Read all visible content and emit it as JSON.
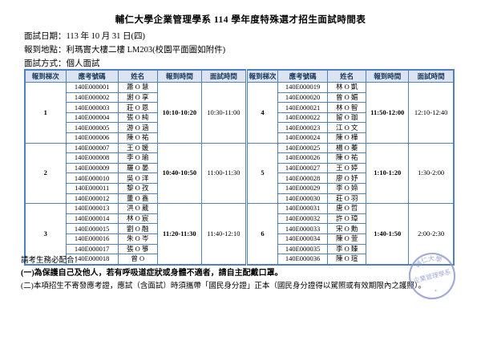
{
  "title": "輔仁大學企業管理學系 114 學年度特殊選才招生面試時間表",
  "info": [
    "面試日期：113 年 10 月 31 日(四)",
    "報到地點：利瑪竇大樓二樓 LM203(校園平面圖如附件)",
    "面試方式：個人面試"
  ],
  "schedule": {
    "headers": [
      "報到梯次",
      "應考號碼",
      "姓名",
      "報到時間",
      "面試時間"
    ],
    "groups": [
      {
        "batch": "1",
        "checkin_time": "10:10-10:20",
        "interview_time": "10:30-11:00",
        "students": [
          {
            "id": "140E000001",
            "name": "蕭 O 慧"
          },
          {
            "id": "140E000002",
            "name": "謝 O 享"
          },
          {
            "id": "140E000003",
            "name": "莊 O 恩"
          },
          {
            "id": "140E000004",
            "name": "張 O 純"
          },
          {
            "id": "140E000005",
            "name": "游 O 涵"
          },
          {
            "id": "140E000006",
            "name": "陳 O 祐"
          }
        ]
      },
      {
        "batch": "2",
        "checkin_time": "10:40-10:50",
        "interview_time": "11:00-11:30",
        "students": [
          {
            "id": "140E000007",
            "name": "王 O 媛"
          },
          {
            "id": "140E000008",
            "name": "李 O 瑜"
          },
          {
            "id": "140E000009",
            "name": "羅 O 晏"
          },
          {
            "id": "140E000010",
            "name": "吳 O 洋"
          },
          {
            "id": "140E000011",
            "name": "黎 O 孜"
          },
          {
            "id": "140E000012",
            "name": "董 O 鑫"
          }
        ]
      },
      {
        "batch": "3",
        "checkin_time": "11:20-11:30",
        "interview_time": "11:40-12:10",
        "students": [
          {
            "id": "140E000013",
            "name": "洪 O 葳"
          },
          {
            "id": "140E000014",
            "name": "林 O 宸"
          },
          {
            "id": "140E000015",
            "name": "劉 O 融"
          },
          {
            "id": "140E000016",
            "name": "朱 O 岑"
          },
          {
            "id": "140E000017",
            "name": "張 O 箏"
          },
          {
            "id": "140E000018",
            "name": "曾 O"
          }
        ]
      },
      {
        "batch": "4",
        "checkin_time": "11:50-12:00",
        "interview_time": "12:10-12:40",
        "students": [
          {
            "id": "140E000019",
            "name": "林 O 凱"
          },
          {
            "id": "140E000020",
            "name": "曾 O 媚"
          },
          {
            "id": "140E000021",
            "name": "林 O 智"
          },
          {
            "id": "140E000022",
            "name": "留 O 珈"
          },
          {
            "id": "140E000023",
            "name": "江 O 文"
          },
          {
            "id": "140E000024",
            "name": "陳 O 樺"
          }
        ]
      },
      {
        "batch": "5",
        "checkin_time": "1:10-1:20",
        "interview_time": "1:30-2:00",
        "students": [
          {
            "id": "140E000025",
            "name": "楊 O 蓁"
          },
          {
            "id": "140E000026",
            "name": "陳 O 祐"
          },
          {
            "id": "140E000027",
            "name": "王 O 婷"
          },
          {
            "id": "140E000028",
            "name": "廖 O 妤"
          },
          {
            "id": "140E000029",
            "name": "李 O 媂"
          },
          {
            "id": "140E000030",
            "name": "莊 O 羽"
          }
        ]
      },
      {
        "batch": "6",
        "checkin_time": "1:40-1:50",
        "interview_time": "2:00-2:30",
        "students": [
          {
            "id": "140E000031",
            "name": "唐 O 哲"
          },
          {
            "id": "140E000032",
            "name": "許 O 璋"
          },
          {
            "id": "140E000033",
            "name": "宋 O 勳"
          },
          {
            "id": "140E000034",
            "name": "陳 O 萱"
          },
          {
            "id": "140E000035",
            "name": "李 O 臻"
          },
          {
            "id": "140E000036",
            "name": "陳 O 瑄"
          }
        ]
      }
    ]
  },
  "notes": [
    "請考生務必配合：",
    "(一)為保護自己及他人，若有呼吸道症狀或身體不適者，請自主配戴口罩。",
    "(二)本項招生不寄發應考證，應試（含面試）時須攜帶「國民身分證」正本（國民身分證得以駕照或有效期限內之護照）。"
  ],
  "seal": {
    "arc_text": "輔仁大學",
    "center_text": "企業管理學系"
  },
  "colors": {
    "table_border": "#4f81bd",
    "header_bg": "#dbe4f0",
    "header_text": "#17365d",
    "seal_blue": "#8a97cc"
  }
}
